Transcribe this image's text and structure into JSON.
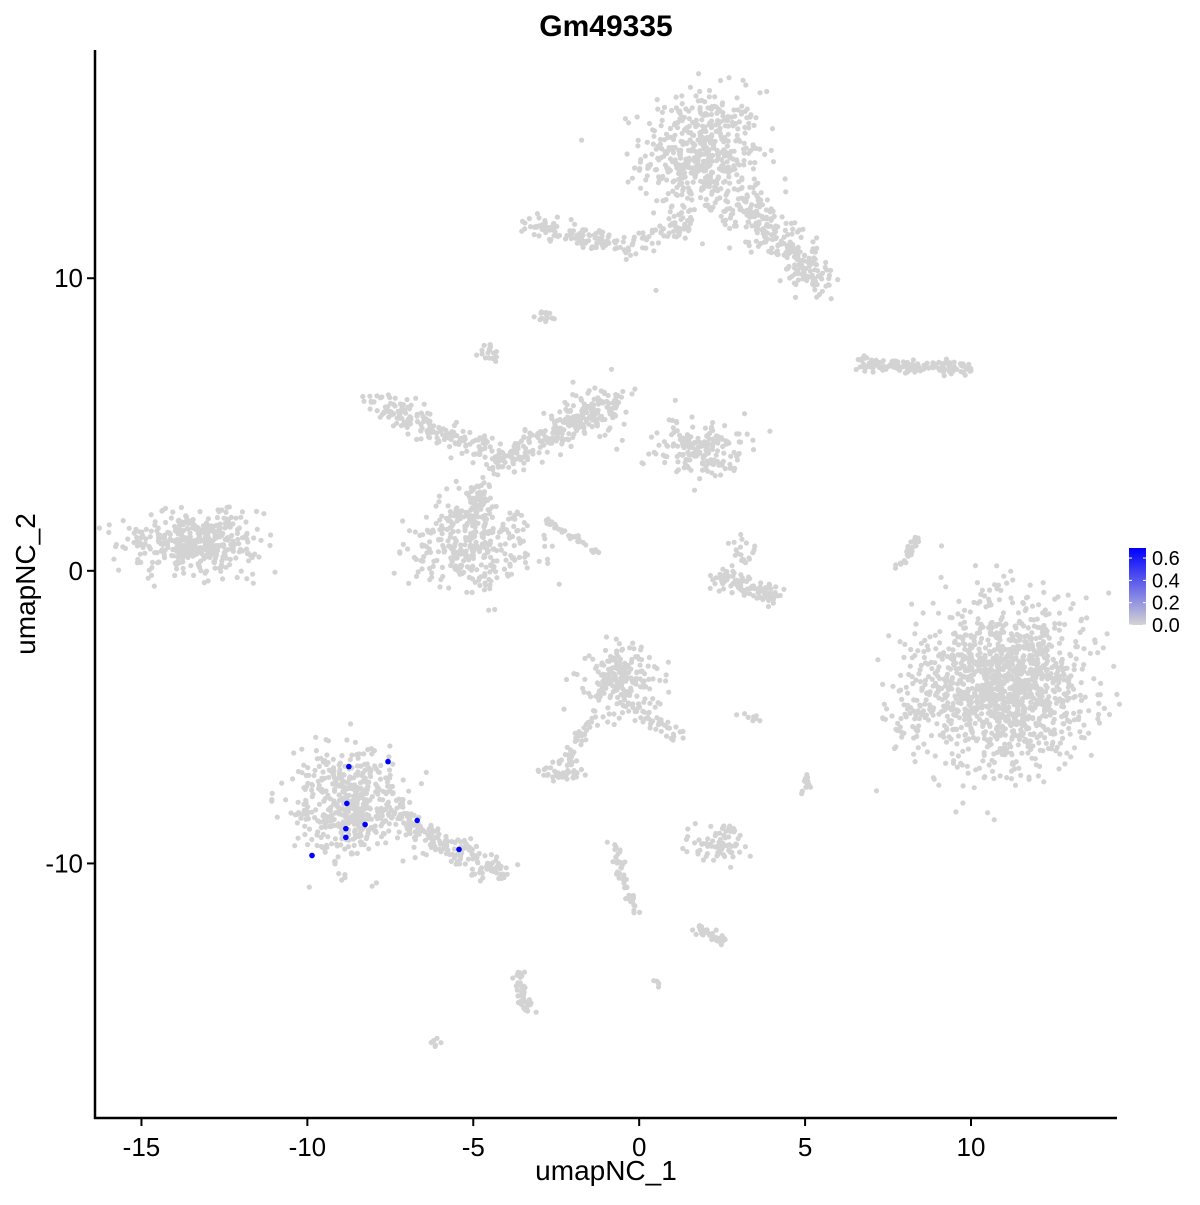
{
  "chart_data": {
    "type": "scatter",
    "title": "Gm49335",
    "xlabel": "umapNC_1",
    "ylabel": "umapNC_2",
    "xlim": [
      -16.4,
      14.4
    ],
    "ylim": [
      -18.7,
      17.8
    ],
    "x_ticks": [
      -15,
      -10,
      -5,
      0,
      5,
      10
    ],
    "y_ticks": [
      -10,
      0,
      10
    ],
    "grid": false,
    "colors": {
      "low": "#D3D3D3",
      "high": "#0000FF"
    },
    "legend": {
      "position": "right",
      "ticks": [
        "0.0",
        "0.2",
        "0.4",
        "0.6"
      ],
      "min": 0.0,
      "max": 0.69
    },
    "expressing_cells": [
      {
        "x": -8.75,
        "y": -6.69,
        "value": 0.69
      },
      {
        "x": -7.57,
        "y": -6.52,
        "value": 0.69
      },
      {
        "x": -8.81,
        "y": -7.95,
        "value": 0.69
      },
      {
        "x": -8.84,
        "y": -8.81,
        "value": 0.69
      },
      {
        "x": -8.26,
        "y": -8.67,
        "value": 0.69
      },
      {
        "x": -8.84,
        "y": -9.11,
        "value": 0.69
      },
      {
        "x": -6.69,
        "y": -8.53,
        "value": 0.69
      },
      {
        "x": -5.43,
        "y": -9.52,
        "value": 0.69
      },
      {
        "x": -9.86,
        "y": -9.73,
        "value": 0.69
      }
    ],
    "non_expressing_clusters": [
      {
        "cx": 1.9,
        "cy": 14.2,
        "sx": 0.9,
        "sy": 1.1,
        "n": 520
      },
      {
        "from": [
          3.1,
          12.7
        ],
        "to": [
          5.5,
          9.6
        ],
        "spread": 0.55,
        "n": 260
      },
      {
        "from": [
          -3.3,
          11.9
        ],
        "to": [
          -0.8,
          11.2
        ],
        "spread": 0.3,
        "n": 110
      },
      {
        "from": [
          -0.6,
          11.0
        ],
        "to": [
          1.6,
          12.0
        ],
        "spread": 0.35,
        "n": 70
      },
      {
        "cx": -2.8,
        "cy": 8.7,
        "sx": 0.15,
        "sy": 0.1,
        "n": 15
      },
      {
        "cx": -4.5,
        "cy": 7.4,
        "sx": 0.15,
        "sy": 0.2,
        "n": 18
      },
      {
        "from": [
          6.5,
          7.1
        ],
        "to": [
          10.0,
          6.9
        ],
        "spread": 0.2,
        "n": 140
      },
      {
        "from": [
          -7.8,
          5.7
        ],
        "to": [
          -4.5,
          4.0
        ],
        "spread": 0.45,
        "n": 170
      },
      {
        "cx": -5.0,
        "cy": 0.9,
        "sx": 0.9,
        "sy": 0.75,
        "n": 330
      },
      {
        "from": [
          -4.3,
          3.5
        ],
        "to": [
          -1.4,
          5.5
        ],
        "spread": 0.45,
        "n": 200
      },
      {
        "cx": -1.2,
        "cy": 5.5,
        "sx": 0.45,
        "sy": 0.5,
        "n": 90
      },
      {
        "cx": 1.9,
        "cy": 4.2,
        "sx": 0.7,
        "sy": 0.45,
        "n": 180
      },
      {
        "from": [
          -4.8,
          3.0
        ],
        "to": [
          -5.0,
          1.5
        ],
        "spread": 0.3,
        "n": 60
      },
      {
        "from": [
          -2.8,
          1.7
        ],
        "to": [
          -1.2,
          0.6
        ],
        "spread": 0.08,
        "n": 35
      },
      {
        "cx": -13.4,
        "cy": 1.0,
        "sx": 1.0,
        "sy": 0.5,
        "n": 420
      },
      {
        "from": [
          2.3,
          -0.2
        ],
        "to": [
          4.2,
          -0.9
        ],
        "spread": 0.3,
        "n": 110
      },
      {
        "cx": 3.1,
        "cy": 0.6,
        "sx": 0.25,
        "sy": 0.3,
        "n": 20
      },
      {
        "from": [
          7.8,
          0.0
        ],
        "to": [
          8.4,
          1.2
        ],
        "spread": 0.12,
        "n": 30
      },
      {
        "cx": 11.0,
        "cy": -3.9,
        "sx": 1.25,
        "sy": 1.4,
        "n": 1300
      },
      {
        "cx": 8.3,
        "cy": -4.9,
        "sx": 0.4,
        "sy": 0.8,
        "n": 60
      },
      {
        "cx": -0.5,
        "cy": -3.7,
        "sx": 0.55,
        "sy": 0.55,
        "n": 200
      },
      {
        "from": [
          -0.4,
          -4.5
        ],
        "to": [
          1.3,
          -5.7
        ],
        "spread": 0.3,
        "n": 50
      },
      {
        "from": [
          -1.3,
          -5.0
        ],
        "to": [
          -2.3,
          -6.6
        ],
        "spread": 0.2,
        "n": 40
      },
      {
        "cx": -8.8,
        "cy": -7.9,
        "sx": 0.85,
        "sy": 0.95,
        "n": 500
      },
      {
        "from": [
          -7.5,
          -8.3
        ],
        "to": [
          -4.1,
          -10.4
        ],
        "spread": 0.35,
        "n": 180
      },
      {
        "cx": -2.3,
        "cy": -6.9,
        "sx": 0.3,
        "sy": 0.15,
        "n": 45
      },
      {
        "cx": 2.3,
        "cy": -9.4,
        "sx": 0.45,
        "sy": 0.25,
        "n": 70
      },
      {
        "from": [
          1.7,
          -12.2
        ],
        "to": [
          2.6,
          -12.7
        ],
        "spread": 0.15,
        "n": 35
      },
      {
        "from": [
          -3.6,
          -13.8
        ],
        "to": [
          -3.4,
          -15.2
        ],
        "spread": 0.18,
        "n": 45
      },
      {
        "from": [
          -0.8,
          -9.2
        ],
        "to": [
          -0.1,
          -11.7
        ],
        "spread": 0.15,
        "n": 45
      },
      {
        "cx": -6.1,
        "cy": -16.1,
        "sx": 0.08,
        "sy": 0.08,
        "n": 6
      },
      {
        "cx": 0.6,
        "cy": -14.1,
        "sx": 0.08,
        "sy": 0.08,
        "n": 6
      },
      {
        "cx": 5.0,
        "cy": -7.3,
        "sx": 0.12,
        "sy": 0.18,
        "n": 12
      },
      {
        "cx": 2.7,
        "cy": -8.8,
        "sx": 0.1,
        "sy": 0.1,
        "n": 8
      },
      {
        "cx": 3.4,
        "cy": -5.0,
        "sx": 0.25,
        "sy": 0.1,
        "n": 8
      }
    ]
  }
}
